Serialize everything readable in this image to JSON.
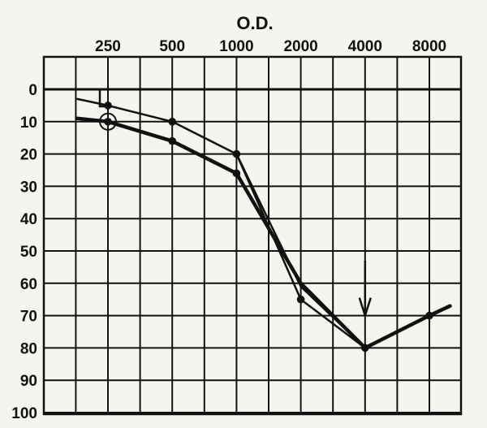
{
  "chart_data": {
    "type": "line",
    "title": "O.D.",
    "xlabel": "",
    "ylabel": "",
    "x_ticks": [
      "250",
      "500",
      "1000",
      "2000",
      "4000",
      "8000"
    ],
    "y_ticks": [
      "0",
      "10",
      "20",
      "30",
      "40",
      "50",
      "60",
      "70",
      "80",
      "90",
      "100"
    ],
    "ylim": [
      0,
      100
    ],
    "y_inverted": true,
    "x_scale": "log2",
    "grid": true,
    "series": [
      {
        "line_weight": "thin",
        "points": [
          {
            "x": 180,
            "y": 3
          },
          {
            "x": 250,
            "y": 5
          },
          {
            "x": 500,
            "y": 10
          },
          {
            "x": 1000,
            "y": 20
          },
          {
            "x": 2000,
            "y": 61
          },
          {
            "x": 4000,
            "y": 80
          }
        ],
        "marked_x": [
          250,
          500,
          1000
        ]
      },
      {
        "line_weight": "thick",
        "points": [
          {
            "x": 180,
            "y": 9
          },
          {
            "x": 250,
            "y": 10
          },
          {
            "x": 500,
            "y": 16
          },
          {
            "x": 1000,
            "y": 26
          },
          {
            "x": 2000,
            "y": 60
          },
          {
            "x": 4000,
            "y": 80
          },
          {
            "x": 8000,
            "y": 70
          },
          {
            "x": 10000,
            "y": 67
          }
        ],
        "marked_x": [
          250,
          500,
          1000,
          4000,
          8000
        ]
      },
      {
        "line_weight": "thin",
        "points": [
          {
            "x": 1000,
            "y": 20
          },
          {
            "x": 2000,
            "y": 65
          },
          {
            "x": 4000,
            "y": 80
          }
        ],
        "marked_x": [
          2000
        ]
      }
    ],
    "annotations": [
      {
        "type": "circle-marker",
        "x": 250,
        "y": 10
      },
      {
        "type": "bracket-marker",
        "x": 250,
        "y": 3
      },
      {
        "type": "down-arrow",
        "x": 4000,
        "y_from": 53,
        "y_to": 70
      }
    ]
  }
}
